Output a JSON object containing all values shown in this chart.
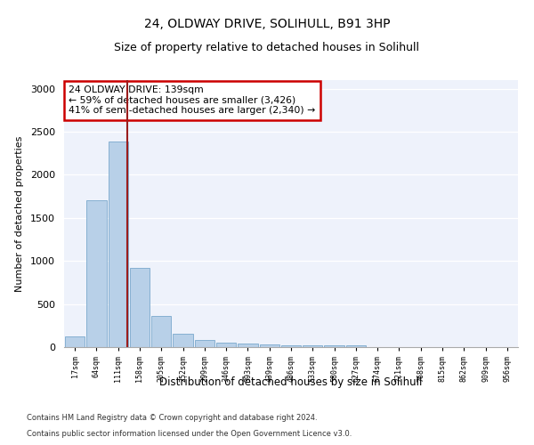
{
  "title1": "24, OLDWAY DRIVE, SOLIHULL, B91 3HP",
  "title2": "Size of property relative to detached houses in Solihull",
  "xlabel": "Distribution of detached houses by size in Solihull",
  "ylabel": "Number of detached properties",
  "categories": [
    "17sqm",
    "64sqm",
    "111sqm",
    "158sqm",
    "205sqm",
    "252sqm",
    "299sqm",
    "346sqm",
    "393sqm",
    "439sqm",
    "486sqm",
    "533sqm",
    "580sqm",
    "627sqm",
    "674sqm",
    "721sqm",
    "768sqm",
    "815sqm",
    "862sqm",
    "909sqm",
    "956sqm"
  ],
  "values": [
    120,
    1700,
    2390,
    920,
    360,
    155,
    80,
    55,
    40,
    30,
    25,
    20,
    20,
    20,
    0,
    0,
    0,
    0,
    0,
    0,
    0
  ],
  "bar_color": "#b8d0e8",
  "bar_edge_color": "#7aa8cc",
  "vline_color": "#9b1c1c",
  "annotation_title": "24 OLDWAY DRIVE: 139sqm",
  "annotation_line2": "← 59% of detached houses are smaller (3,426)",
  "annotation_line3": "41% of semi-detached houses are larger (2,340) →",
  "annotation_box_facecolor": "white",
  "annotation_box_edgecolor": "#cc0000",
  "ylim": [
    0,
    3100
  ],
  "yticks": [
    0,
    500,
    1000,
    1500,
    2000,
    2500,
    3000
  ],
  "background_color": "#eef2fb",
  "grid_color": "white",
  "footer1": "Contains HM Land Registry data © Crown copyright and database right 2024.",
  "footer2": "Contains public sector information licensed under the Open Government Licence v3.0."
}
